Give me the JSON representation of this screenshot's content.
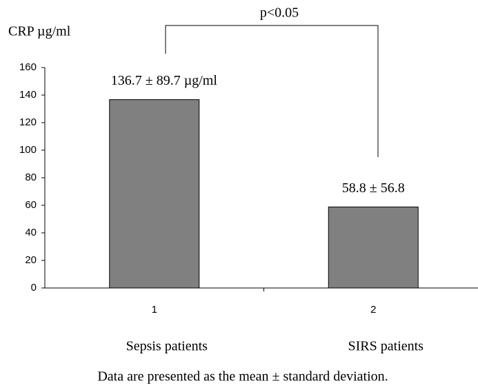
{
  "chart_data": {
    "type": "bar",
    "y_label": "CRP µg/ml",
    "categories": [
      "1",
      "2"
    ],
    "group_labels": [
      "Sepsis patients",
      "SIRS patients"
    ],
    "values": [
      136.7,
      58.8
    ],
    "value_labels": [
      "136.7 ± 89.7  µg/ml",
      "58.8 ± 56.8"
    ],
    "color": "#808080",
    "ylim": [
      0,
      160
    ],
    "yticks": [
      0,
      20,
      40,
      60,
      80,
      100,
      120,
      140,
      160
    ],
    "annotation": "p<0.05",
    "note": "Data are presented as the mean ± standard deviation."
  }
}
